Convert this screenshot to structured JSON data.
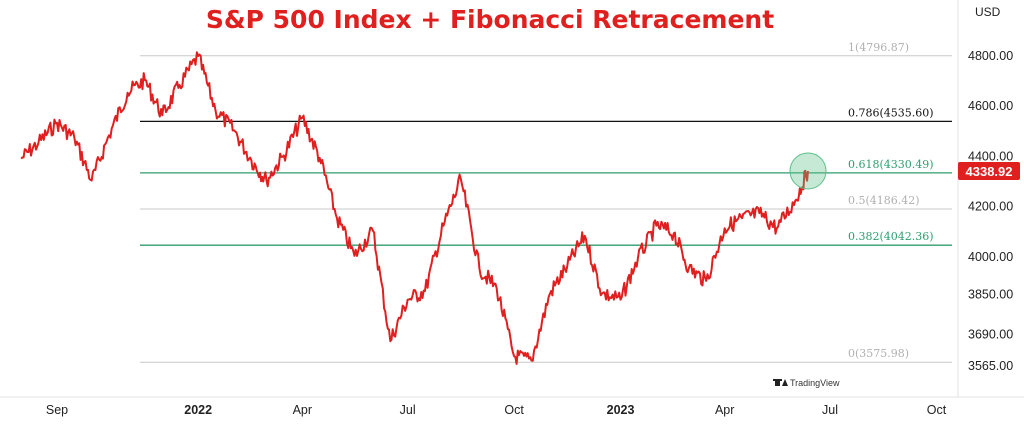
{
  "chart_data": {
    "type": "line",
    "title": "S&P 500 Index + Fibonacci Retracement",
    "unit_label": "USD",
    "y_ticks": [
      4800,
      4600,
      4400,
      4200,
      4000,
      3850,
      3690,
      3565
    ],
    "y_tick_labels": [
      "4800.00",
      "4600.00",
      "4400.00",
      "4200.00",
      "4000.00",
      "3850.00",
      "3690.00",
      "3565.00"
    ],
    "x_ticks": [
      {
        "label": "Sep",
        "date": "2021-09-01",
        "bold": false
      },
      {
        "label": "2022",
        "date": "2022-01-01",
        "bold": true
      },
      {
        "label": "Apr",
        "date": "2022-04-01",
        "bold": false
      },
      {
        "label": "Jul",
        "date": "2022-07-01",
        "bold": false
      },
      {
        "label": "Oct",
        "date": "2022-10-01",
        "bold": false
      },
      {
        "label": "2023",
        "date": "2023-01-01",
        "bold": true
      },
      {
        "label": "Apr",
        "date": "2023-04-01",
        "bold": false
      },
      {
        "label": "Jul",
        "date": "2023-07-01",
        "bold": false
      },
      {
        "label": "Oct",
        "date": "2023-10-01",
        "bold": false
      }
    ],
    "last_value_label": "4338.92",
    "fib_levels": [
      {
        "ratio": 1,
        "value": 4796.87,
        "label": "1(4796.87)",
        "color": "#c8c8c8"
      },
      {
        "ratio": 0.786,
        "value": 4535.6,
        "label": "0.786(4535.60)",
        "color": "#111111"
      },
      {
        "ratio": 0.618,
        "value": 4330.49,
        "label": "0.618(4330.49)",
        "color": "#2e9e6e"
      },
      {
        "ratio": 0.5,
        "value": 4186.42,
        "label": "0.5(4186.42)",
        "color": "#c8c8c8"
      },
      {
        "ratio": 0.382,
        "value": 4042.36,
        "label": "0.382(4042.36)",
        "color": "#2e9e6e"
      },
      {
        "ratio": 0,
        "value": 3575.98,
        "label": "0(3575.98)",
        "color": "#c8c8c8"
      }
    ],
    "series": [
      {
        "color": "#e01f1f",
        "points": [
          [
            "2021-08-01",
            4387
          ],
          [
            "2021-08-16",
            4450
          ],
          [
            "2021-09-01",
            4530
          ],
          [
            "2021-09-16",
            4470
          ],
          [
            "2021-10-01",
            4300
          ],
          [
            "2021-10-16",
            4480
          ],
          [
            "2021-11-01",
            4650
          ],
          [
            "2021-11-16",
            4700
          ],
          [
            "2021-12-01",
            4560
          ],
          [
            "2021-12-16",
            4680
          ],
          [
            "2022-01-01",
            4796
          ],
          [
            "2022-01-16",
            4580
          ],
          [
            "2022-02-01",
            4500
          ],
          [
            "2022-02-16",
            4380
          ],
          [
            "2022-03-01",
            4300
          ],
          [
            "2022-03-16",
            4400
          ],
          [
            "2022-04-01",
            4550
          ],
          [
            "2022-04-16",
            4390
          ],
          [
            "2022-05-01",
            4150
          ],
          [
            "2022-05-16",
            4000
          ],
          [
            "2022-06-01",
            4100
          ],
          [
            "2022-06-16",
            3660
          ],
          [
            "2022-07-01",
            3825
          ],
          [
            "2022-07-16",
            3860
          ],
          [
            "2022-08-01",
            4120
          ],
          [
            "2022-08-16",
            4305
          ],
          [
            "2022-09-01",
            3950
          ],
          [
            "2022-09-16",
            3870
          ],
          [
            "2022-10-01",
            3600
          ],
          [
            "2022-10-16",
            3583
          ],
          [
            "2022-11-01",
            3850
          ],
          [
            "2022-11-16",
            3960
          ],
          [
            "2022-12-01",
            4080
          ],
          [
            "2022-12-16",
            3850
          ],
          [
            "2023-01-01",
            3825
          ],
          [
            "2023-01-16",
            3990
          ],
          [
            "2023-02-01",
            4120
          ],
          [
            "2023-02-16",
            4090
          ],
          [
            "2023-03-01",
            3950
          ],
          [
            "2023-03-16",
            3900
          ],
          [
            "2023-04-01",
            4110
          ],
          [
            "2023-04-16",
            4150
          ],
          [
            "2023-05-01",
            4170
          ],
          [
            "2023-05-16",
            4110
          ],
          [
            "2023-06-01",
            4220
          ],
          [
            "2023-06-12",
            4338
          ]
        ]
      }
    ],
    "highlight": {
      "date": "2023-06-12",
      "value": 4338,
      "color": "#5cc08a"
    },
    "watermark": "TradingView",
    "grid": false
  }
}
